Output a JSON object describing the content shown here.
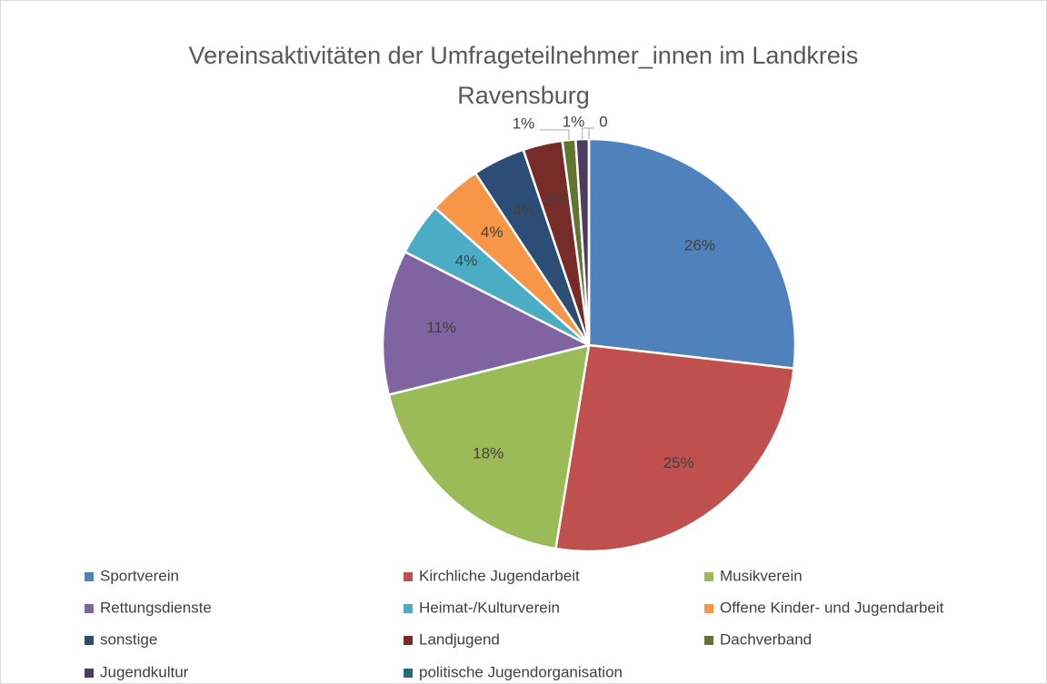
{
  "chart_data": {
    "type": "pie",
    "title": "Vereinsaktivitäten der Umfrageteilnehmer_innen im Landkreis Ravensburg",
    "categories": [
      "Sportverein",
      "Kirchliche Jugendarbeit",
      "Musikverein",
      "Rettungsdienste",
      "Heimat-/Kulturverein",
      "Offene Kinder- und Jugendarbeit",
      "sonstige",
      "Landjugend",
      "Dachverband",
      "Jugendkultur",
      "politische Jugendorganisation"
    ],
    "values": [
      26,
      25,
      18,
      11,
      4,
      4,
      4,
      3,
      1,
      1,
      0
    ],
    "value_labels": [
      "26%",
      "25%",
      "18%",
      "11%",
      "4%",
      "4%",
      "4%",
      "3%",
      "1%",
      "1%",
      "0"
    ],
    "colors": [
      "#4f81bd",
      "#c0504d",
      "#9bbb59",
      "#8064a2",
      "#4bacc6",
      "#f79646",
      "#2c4d75",
      "#772c2a",
      "#5f7530",
      "#4d3b62",
      "#276a7c"
    ],
    "legend": "bottom"
  }
}
